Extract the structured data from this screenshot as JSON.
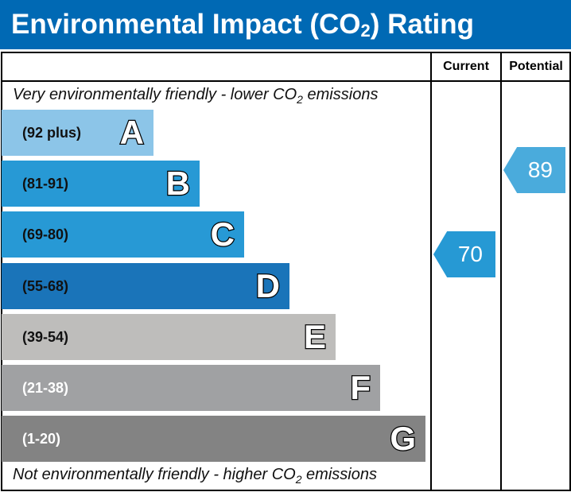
{
  "title": {
    "prefix": "Environmental Impact (CO",
    "sub": "2",
    "suffix": ") Rating"
  },
  "headers": {
    "current": "Current",
    "potential": "Potential"
  },
  "top_note": {
    "prefix": "Very environmentally friendly - lower CO",
    "sub": "2",
    "suffix": " emissions"
  },
  "bottom_note": {
    "prefix": "Not environmentally friendly - higher CO",
    "sub": "2",
    "suffix": " emissions"
  },
  "chart_data": {
    "type": "bar",
    "title": "Environmental Impact (CO2) Rating",
    "bands": [
      {
        "letter": "A",
        "range": "(92 plus)",
        "color": "#8cc5e8"
      },
      {
        "letter": "B",
        "range": "(81-91)",
        "color": "#2799d5"
      },
      {
        "letter": "C",
        "range": "(69-80)",
        "color": "#2799d5"
      },
      {
        "letter": "D",
        "range": "(55-68)",
        "color": "#1a74b9"
      },
      {
        "letter": "E",
        "range": "(39-54)",
        "color": "#bebdbb"
      },
      {
        "letter": "F",
        "range": "(21-38)",
        "color": "#a0a1a3"
      },
      {
        "letter": "G",
        "range": "(1-20)",
        "color": "#838383"
      }
    ],
    "current": {
      "value": "70",
      "band": "C",
      "color": "#2699d4"
    },
    "potential": {
      "value": "89",
      "band": "B",
      "color": "#4aabdc"
    }
  }
}
